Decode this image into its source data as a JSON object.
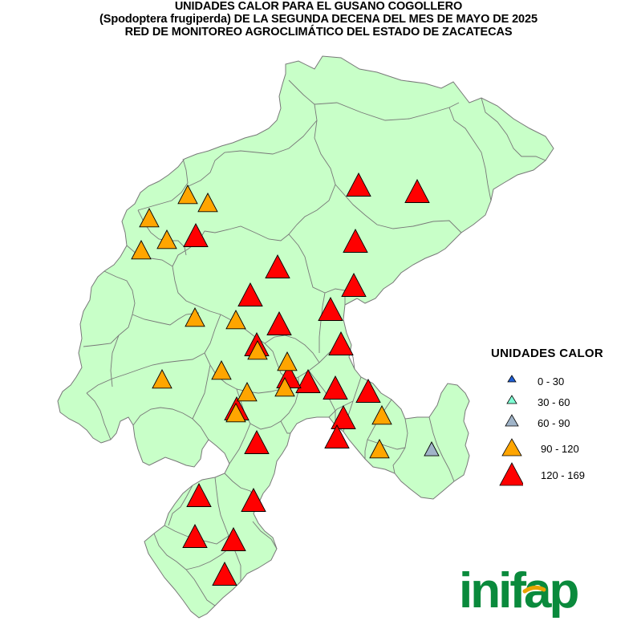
{
  "title": {
    "line1": "UNIDADES CALOR PARA EL GUSANO COGOLLERO",
    "line2": "(Spodoptera frugiperda) DE LA SEGUNDA DECENA DEL MES DE MAYO DE 2025",
    "line3": "RED DE MONITOREO AGROCLIMÁTICO DEL ESTADO DE ZACATECAS"
  },
  "legend": {
    "title": "UNIDADES CALOR",
    "classes": [
      {
        "label": "0 - 30",
        "color": "#1f5fd6"
      },
      {
        "label": "30 - 60",
        "color": "#7fffd4"
      },
      {
        "label": "60 - 90",
        "color": "#a0b4c8"
      },
      {
        "label": "90 - 120",
        "color": "#ffa500"
      },
      {
        "label": "120 - 169",
        "color": "#ff0000"
      }
    ]
  },
  "map_colors": {
    "fill": "#c8ffc8",
    "stroke": "#787878"
  },
  "logo": {
    "text": "inifap",
    "color": "#0a8a3c",
    "accent": "#e8a400"
  },
  "stations": [
    {
      "cls": 4
    },
    {
      "cls": 4
    },
    {
      "cls": 4
    },
    {
      "cls": 4
    },
    {
      "cls": 4
    },
    {
      "cls": 4
    },
    {
      "cls": 4
    },
    {
      "cls": 4
    },
    {
      "cls": 4
    },
    {
      "cls": 4
    },
    {
      "cls": 4
    },
    {
      "cls": 4
    },
    {
      "cls": 4
    },
    {
      "cls": 4
    },
    {
      "cls": 4
    },
    {
      "cls": 4
    },
    {
      "cls": 4
    },
    {
      "cls": 4
    },
    {
      "cls": 4
    },
    {
      "cls": 4
    },
    {
      "cls": 4
    },
    {
      "cls": 4
    },
    {
      "cls": 4
    },
    {
      "cls": 4
    },
    {
      "cls": 3
    },
    {
      "cls": 3
    },
    {
      "cls": 3
    },
    {
      "cls": 3
    },
    {
      "cls": 3
    },
    {
      "cls": 3
    },
    {
      "cls": 3
    },
    {
      "cls": 3
    },
    {
      "cls": 3
    },
    {
      "cls": 3
    },
    {
      "cls": 3
    },
    {
      "cls": 3
    },
    {
      "cls": 3
    },
    {
      "cls": 3
    },
    {
      "cls": 3
    },
    {
      "cls": 3
    },
    {
      "cls": 2
    }
  ]
}
